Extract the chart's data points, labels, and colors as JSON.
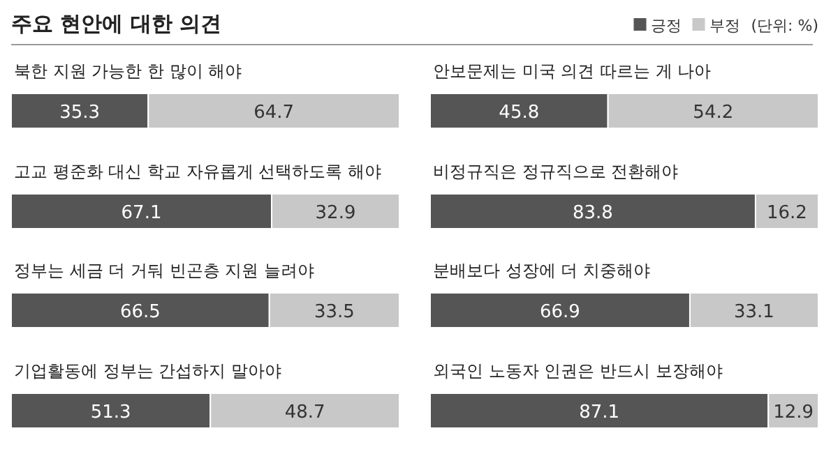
{
  "chart_data": [
    {
      "type": "bar",
      "orientation": "horizontal",
      "stacked": true,
      "title": "주요 현안에 대한 의견",
      "data_labels": true,
      "xlim": [
        0,
        100
      ],
      "categories": [
        "북한 지원 가능한 한 많이 해야",
        "고교 평준화 대신 학교 자유롭게 선택하도록 해야",
        "정부는 세금 더 거둬 빈곤층 지원 늘려야",
        "기업활동에 정부는 간섭하지 말아야"
      ],
      "series": [
        {
          "color": "#555555",
          "values": [
            35.3,
            67.1,
            66.5,
            51.3
          ]
        },
        {
          "color": "#c8c8c8",
          "values": [
            64.7,
            32.9,
            33.5,
            48.7
          ]
        }
      ]
    },
    {
      "type": "bar",
      "orientation": "horizontal",
      "stacked": true,
      "annotations": [
        "(단위: %)"
      ],
      "legend": "top right",
      "data_labels": true,
      "xlim": [
        0,
        100
      ],
      "categories": [
        "안보문제는 미국 의견 따르는 게 나아",
        "비정규직은 정규직으로 전환해야",
        "분배보다 성장에 더 치중해야",
        "외국인 노동자 인권은 반드시 보장해야"
      ],
      "series": [
        {
          "name": "긍정",
          "color": "#555555",
          "values": [
            45.8,
            83.8,
            66.9,
            87.1
          ]
        },
        {
          "name": "부정",
          "color": "#c8c8c8",
          "values": [
            54.2,
            16.2,
            33.1,
            12.9
          ]
        }
      ]
    }
  ]
}
